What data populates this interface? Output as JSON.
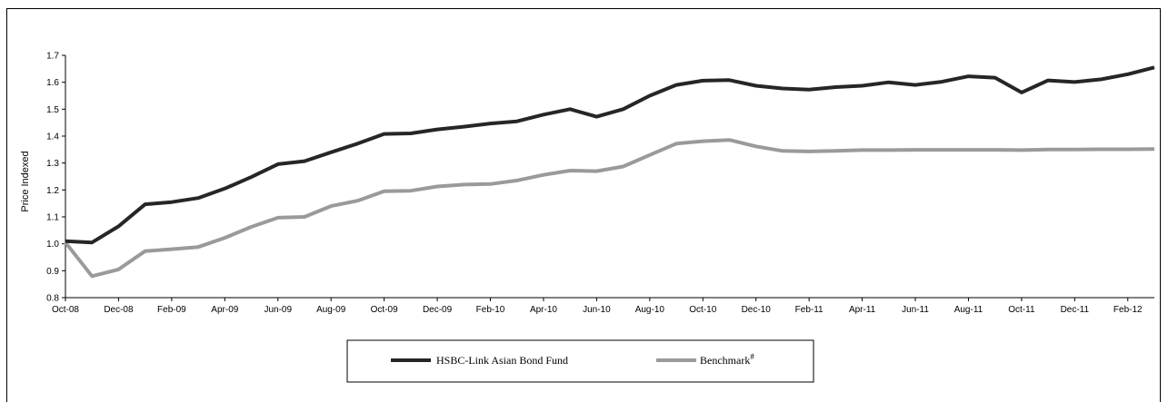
{
  "chart_data": {
    "type": "line",
    "title": "",
    "xlabel": "",
    "ylabel": "Price Indexed",
    "ylim": [
      0.8,
      1.7
    ],
    "yticks": [
      "0.8",
      "0.9",
      "1.0",
      "1.1",
      "1.2",
      "1.3",
      "1.4",
      "1.5",
      "1.6",
      "1.7"
    ],
    "x": [
      "Oct-08",
      "Nov-08",
      "Dec-08",
      "Jan-09",
      "Feb-09",
      "Mar-09",
      "Apr-09",
      "May-09",
      "Jun-09",
      "Jul-09",
      "Aug-09",
      "Sep-09",
      "Oct-09",
      "Nov-09",
      "Dec-09",
      "Jan-10",
      "Feb-10",
      "Mar-10",
      "Apr-10",
      "May-10",
      "Jun-10",
      "Jul-10",
      "Aug-10",
      "Sep-10",
      "Oct-10",
      "Nov-10",
      "Dec-10",
      "Jan-11",
      "Feb-11",
      "Mar-11",
      "Apr-11",
      "May-11",
      "Jun-11",
      "Jul-11",
      "Aug-11",
      "Sep-11",
      "Oct-11",
      "Nov-11",
      "Dec-11",
      "Jan-12",
      "Feb-12",
      "Mar-12"
    ],
    "xtick_labels": [
      "Oct-08",
      "Dec-08",
      "Feb-09",
      "Apr-09",
      "Jun-09",
      "Aug-09",
      "Oct-09",
      "Dec-09",
      "Feb-10",
      "Apr-10",
      "Jun-10",
      "Aug-10",
      "Oct-10",
      "Dec-10",
      "Feb-11",
      "Apr-11",
      "Jun-11",
      "Aug-11",
      "Oct-11",
      "Dec-11",
      "Feb-12"
    ],
    "series": [
      {
        "name": "HSBC-Link Asian Bond Fund",
        "color": "#262626",
        "values": [
          1.01,
          1.005,
          1.065,
          1.147,
          1.155,
          1.17,
          1.205,
          1.248,
          1.296,
          1.307,
          1.34,
          1.372,
          1.408,
          1.41,
          1.425,
          1.435,
          1.447,
          1.455,
          1.48,
          1.5,
          1.472,
          1.5,
          1.55,
          1.59,
          1.606,
          1.608,
          1.587,
          1.577,
          1.573,
          1.582,
          1.587,
          1.6,
          1.59,
          1.602,
          1.622,
          1.617,
          1.562,
          1.607,
          1.601,
          1.611,
          1.63,
          1.655
        ]
      },
      {
        "name": "Benchmark",
        "name_sup": "#",
        "color": "#9a9a9a",
        "values": [
          1.005,
          0.88,
          0.905,
          0.973,
          0.98,
          0.988,
          1.022,
          1.063,
          1.097,
          1.1,
          1.14,
          1.16,
          1.195,
          1.197,
          1.213,
          1.22,
          1.222,
          1.235,
          1.256,
          1.272,
          1.27,
          1.287,
          1.33,
          1.372,
          1.381,
          1.386,
          1.362,
          1.345,
          1.343,
          1.345,
          1.348,
          1.348,
          1.349,
          1.349,
          1.349,
          1.349,
          1.348,
          1.35,
          1.35,
          1.351,
          1.351,
          1.352
        ]
      }
    ],
    "grid": false,
    "legend_position": "bottom"
  }
}
